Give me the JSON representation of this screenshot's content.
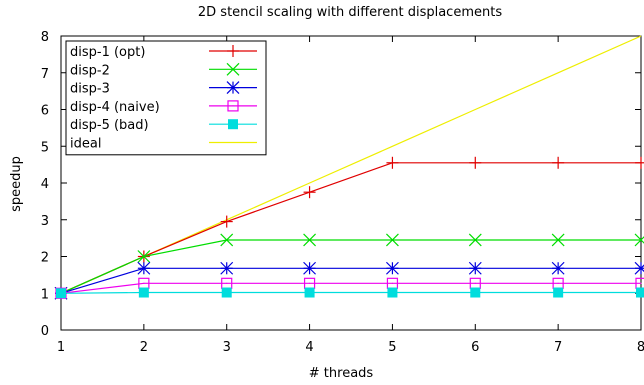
{
  "chart_data": {
    "type": "line",
    "title": "2D stencil scaling with different displacements",
    "xlabel": "# threads",
    "ylabel": "speedup",
    "xlim": [
      1,
      8
    ],
    "ylim": [
      0,
      8
    ],
    "x_ticks": [
      "1",
      "2",
      "3",
      "4",
      "5",
      "6",
      "7",
      "8"
    ],
    "y_ticks": [
      "0",
      "1",
      "2",
      "3",
      "4",
      "5",
      "6",
      "7",
      "8"
    ],
    "grid": false,
    "legend_position": "top-left",
    "x": [
      1,
      2,
      3,
      4,
      5,
      6,
      7,
      8
    ],
    "series": [
      {
        "name": "disp-1 (opt)",
        "color": "#e00000",
        "marker": "plus",
        "values": [
          1,
          2.0,
          2.95,
          3.75,
          4.55,
          4.55,
          4.55,
          4.55
        ]
      },
      {
        "name": "disp-2",
        "color": "#00dd00",
        "marker": "cross",
        "values": [
          1,
          2.0,
          2.45,
          2.45,
          2.45,
          2.45,
          2.45,
          2.45
        ]
      },
      {
        "name": "disp-3",
        "color": "#0000dd",
        "marker": "star",
        "values": [
          1,
          1.68,
          1.68,
          1.68,
          1.68,
          1.68,
          1.68,
          1.68
        ]
      },
      {
        "name": "disp-4 (naive)",
        "color": "#ee00ee",
        "marker": "open-square",
        "values": [
          1,
          1.27,
          1.27,
          1.27,
          1.27,
          1.27,
          1.27,
          1.27
        ]
      },
      {
        "name": "disp-5 (bad)",
        "color": "#00dddd",
        "marker": "filled-square",
        "values": [
          1,
          1.02,
          1.02,
          1.02,
          1.02,
          1.02,
          1.02,
          1.02
        ]
      },
      {
        "name": "ideal",
        "color": "#eeee00",
        "marker": "none",
        "values": [
          1,
          2,
          3,
          4,
          5,
          6,
          7,
          8
        ]
      }
    ]
  }
}
